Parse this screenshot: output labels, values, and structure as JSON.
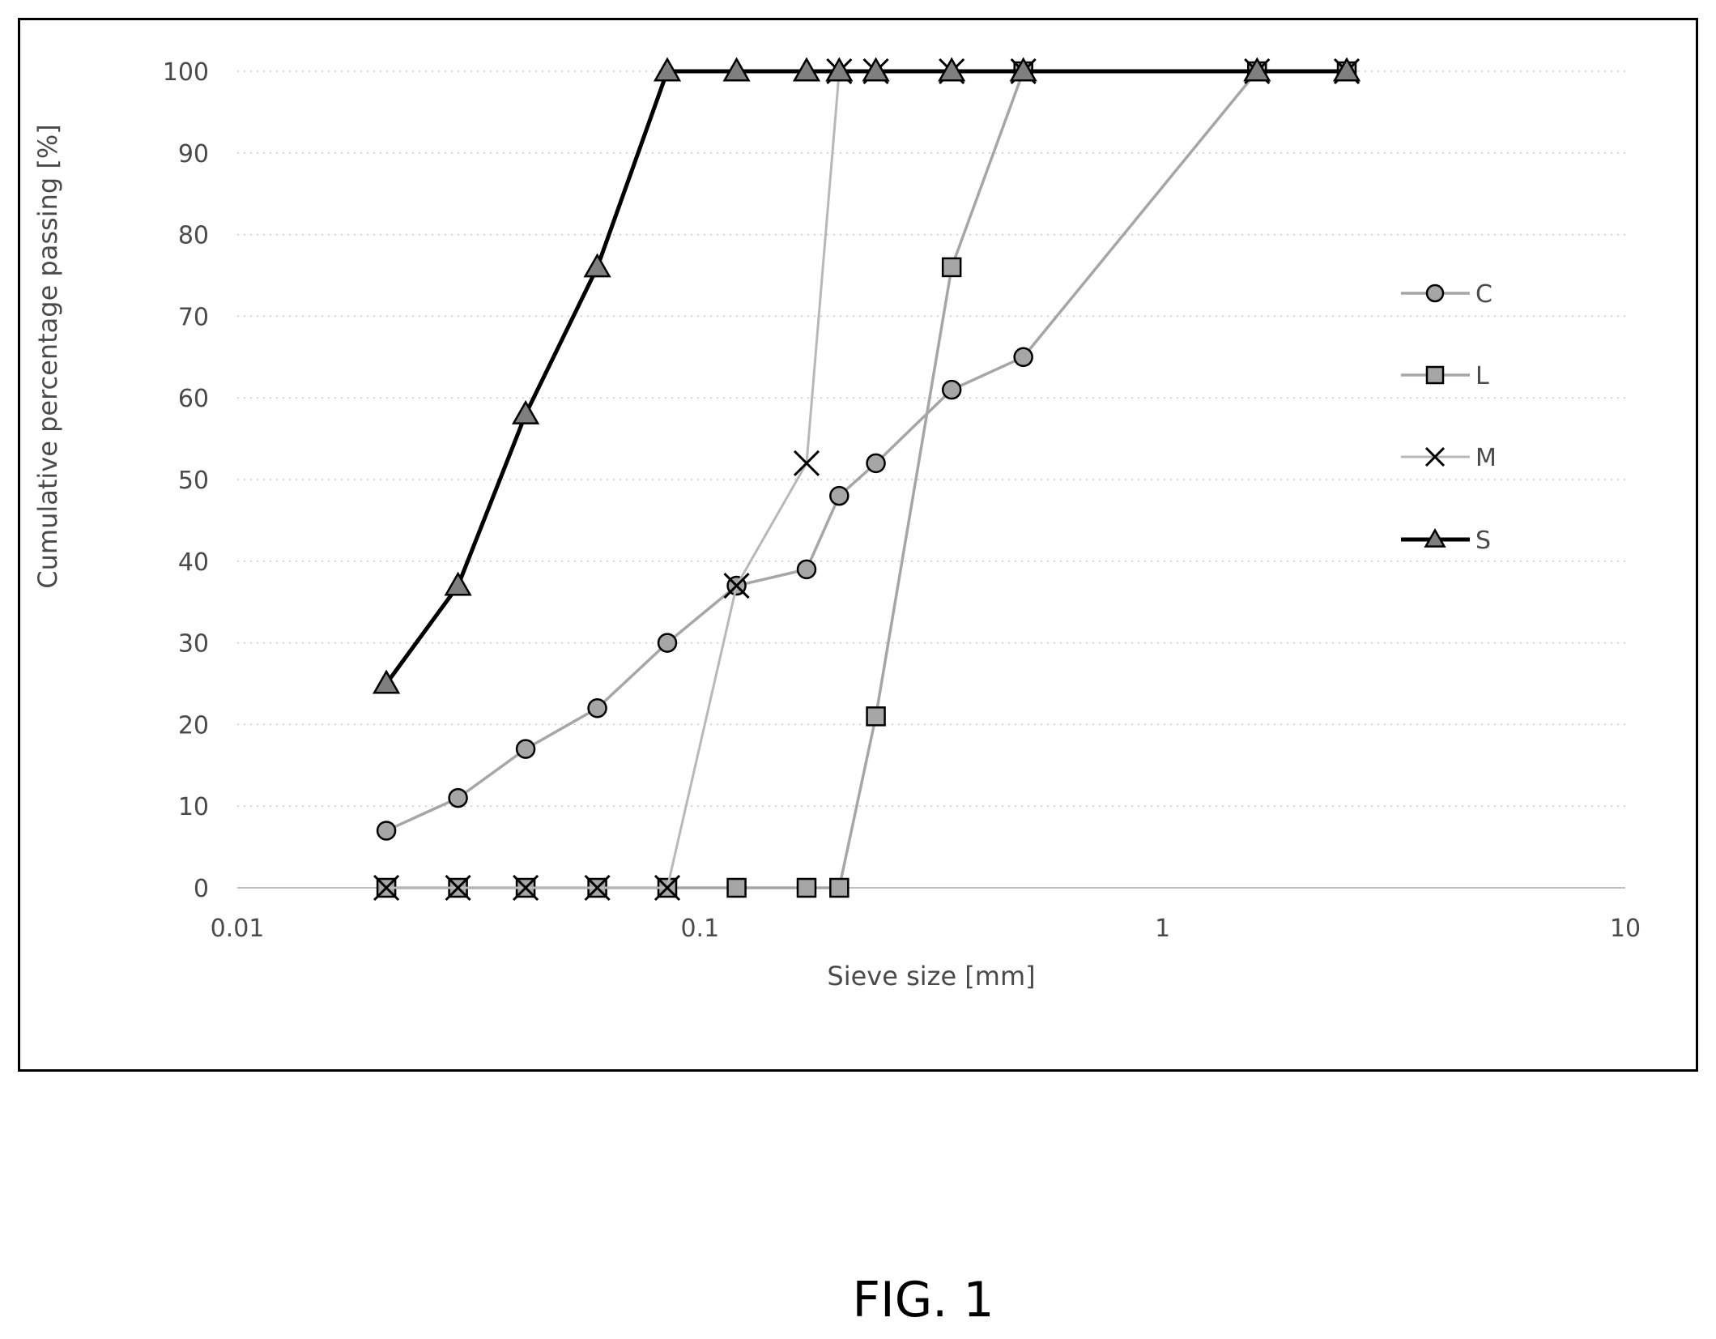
{
  "figure_caption": "FIG. 1",
  "chart_data": {
    "type": "line",
    "xlabel": "Sieve size [mm]",
    "ylabel": "Cumulative percentage passing [%]",
    "x_scale": "log",
    "xlim": [
      0.01,
      10
    ],
    "ylim": [
      0,
      100
    ],
    "x_ticks": [
      0.01,
      0.1,
      1,
      10
    ],
    "x_tick_labels": [
      "0.01",
      "0.1",
      "1",
      "10"
    ],
    "y_ticks": [
      0,
      10,
      20,
      30,
      40,
      50,
      60,
      70,
      80,
      90,
      100
    ],
    "y_tick_labels": [
      "0",
      "10",
      "20",
      "30",
      "40",
      "50",
      "60",
      "70",
      "80",
      "90",
      "100"
    ],
    "grid": "dotted horizontal",
    "legend": "right",
    "series": [
      {
        "name": "C",
        "marker": "circle",
        "color": "#a6a6a6",
        "line_color": "#a6a6a6",
        "x": [
          0.021,
          0.03,
          0.042,
          0.06,
          0.085,
          0.12,
          0.17,
          0.2,
          0.24,
          0.35,
          0.5,
          1.6,
          2.5
        ],
        "y": [
          7,
          11,
          17,
          22,
          30,
          37,
          39,
          48,
          52,
          61,
          65,
          100,
          100
        ]
      },
      {
        "name": "L",
        "marker": "square",
        "color": "#a6a6a6",
        "line_color": "#a6a6a6",
        "x": [
          0.021,
          0.03,
          0.042,
          0.06,
          0.085,
          0.12,
          0.17,
          0.2,
          0.24,
          0.35,
          0.5,
          1.6,
          2.5
        ],
        "y": [
          0,
          0,
          0,
          0,
          0,
          0,
          0,
          0,
          21,
          76,
          100,
          100,
          100
        ]
      },
      {
        "name": "M",
        "marker": "x",
        "color": "#000000",
        "line_color": "#b8b8b8",
        "x": [
          0.021,
          0.03,
          0.042,
          0.06,
          0.085,
          0.12,
          0.17,
          0.2,
          0.24,
          0.35,
          0.5,
          1.6,
          2.5
        ],
        "y": [
          0,
          0,
          0,
          0,
          0,
          37,
          52,
          100,
          100,
          100,
          100,
          100,
          100
        ]
      },
      {
        "name": "S",
        "marker": "triangle",
        "color": "#7f7f7f",
        "line_color": "#000000",
        "x": [
          0.021,
          0.03,
          0.042,
          0.06,
          0.085,
          0.12,
          0.17,
          0.2,
          0.24,
          0.35,
          0.5,
          1.6,
          2.5
        ],
        "y": [
          25,
          37,
          58,
          76,
          100,
          100,
          100,
          100,
          100,
          100,
          100,
          100,
          100
        ]
      }
    ]
  }
}
